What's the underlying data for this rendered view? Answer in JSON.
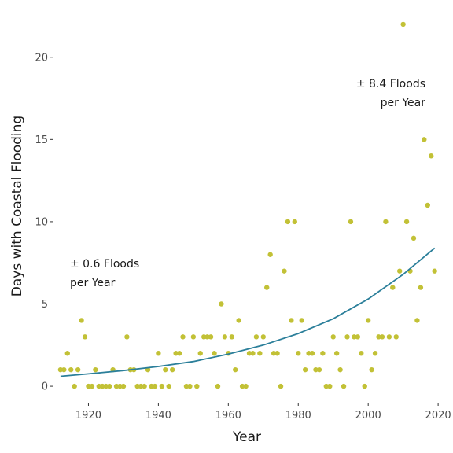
{
  "chart_data": {
    "type": "scatter",
    "xlabel": "Year",
    "ylabel": "Days with Coastal Flooding",
    "xlim": [
      1910,
      2022
    ],
    "ylim": [
      -1,
      23
    ],
    "x_ticks": [
      1920,
      1940,
      1960,
      1980,
      2000,
      2020
    ],
    "y_ticks": [
      0,
      5,
      10,
      15,
      20
    ],
    "grid": false,
    "colors": {
      "points": "#c2c136",
      "trend": "#2b7f9a"
    },
    "points": [
      [
        1912,
        1
      ],
      [
        1913,
        1
      ],
      [
        1914,
        2
      ],
      [
        1915,
        1
      ],
      [
        1916,
        0
      ],
      [
        1917,
        1
      ],
      [
        1918,
        4
      ],
      [
        1919,
        3
      ],
      [
        1920,
        0
      ],
      [
        1921,
        0
      ],
      [
        1922,
        1
      ],
      [
        1923,
        0
      ],
      [
        1924,
        0
      ],
      [
        1925,
        0
      ],
      [
        1926,
        0
      ],
      [
        1927,
        1
      ],
      [
        1928,
        0
      ],
      [
        1929,
        0
      ],
      [
        1930,
        0
      ],
      [
        1931,
        3
      ],
      [
        1932,
        1
      ],
      [
        1933,
        1
      ],
      [
        1934,
        0
      ],
      [
        1935,
        0
      ],
      [
        1936,
        0
      ],
      [
        1937,
        1
      ],
      [
        1938,
        0
      ],
      [
        1939,
        0
      ],
      [
        1940,
        2
      ],
      [
        1941,
        0
      ],
      [
        1942,
        1
      ],
      [
        1943,
        0
      ],
      [
        1944,
        1
      ],
      [
        1945,
        2
      ],
      [
        1946,
        2
      ],
      [
        1947,
        3
      ],
      [
        1948,
        0
      ],
      [
        1949,
        0
      ],
      [
        1950,
        3
      ],
      [
        1951,
        0
      ],
      [
        1952,
        2
      ],
      [
        1953,
        3
      ],
      [
        1954,
        3
      ],
      [
        1955,
        3
      ],
      [
        1956,
        2
      ],
      [
        1957,
        0
      ],
      [
        1958,
        5
      ],
      [
        1959,
        3
      ],
      [
        1960,
        2
      ],
      [
        1961,
        3
      ],
      [
        1962,
        1
      ],
      [
        1963,
        4
      ],
      [
        1964,
        0
      ],
      [
        1965,
        0
      ],
      [
        1966,
        2
      ],
      [
        1967,
        2
      ],
      [
        1968,
        3
      ],
      [
        1969,
        2
      ],
      [
        1970,
        3
      ],
      [
        1971,
        6
      ],
      [
        1972,
        8
      ],
      [
        1973,
        2
      ],
      [
        1974,
        2
      ],
      [
        1975,
        0
      ],
      [
        1976,
        7
      ],
      [
        1977,
        10
      ],
      [
        1978,
        4
      ],
      [
        1979,
        10
      ],
      [
        1980,
        2
      ],
      [
        1981,
        4
      ],
      [
        1982,
        1
      ],
      [
        1983,
        2
      ],
      [
        1984,
        2
      ],
      [
        1985,
        1
      ],
      [
        1986,
        1
      ],
      [
        1987,
        2
      ],
      [
        1988,
        0
      ],
      [
        1989,
        0
      ],
      [
        1990,
        3
      ],
      [
        1991,
        2
      ],
      [
        1992,
        1
      ],
      [
        1993,
        0
      ],
      [
        1994,
        3
      ],
      [
        1995,
        10
      ],
      [
        1996,
        3
      ],
      [
        1997,
        3
      ],
      [
        1998,
        2
      ],
      [
        1999,
        0
      ],
      [
        2000,
        4
      ],
      [
        2001,
        1
      ],
      [
        2002,
        2
      ],
      [
        2003,
        3
      ],
      [
        2004,
        3
      ],
      [
        2005,
        10
      ],
      [
        2006,
        3
      ],
      [
        2007,
        6
      ],
      [
        2008,
        3
      ],
      [
        2009,
        7
      ],
      [
        2010,
        22
      ],
      [
        2011,
        10
      ],
      [
        2012,
        7
      ],
      [
        2013,
        9
      ],
      [
        2014,
        4
      ],
      [
        2015,
        6
      ],
      [
        2016,
        15
      ],
      [
        2017,
        11
      ],
      [
        2018,
        14
      ],
      [
        2019,
        7
      ]
    ],
    "trend": {
      "x": [
        1912,
        1920,
        1930,
        1940,
        1950,
        1960,
        1970,
        1980,
        1990,
        2000,
        2010,
        2019
      ],
      "y": [
        0.6,
        0.75,
        0.95,
        1.2,
        1.5,
        1.95,
        2.5,
        3.2,
        4.1,
        5.3,
        6.8,
        8.4
      ]
    },
    "annotations": [
      {
        "id": "early",
        "lines": [
          "± 0.6 Floods",
          "per Year"
        ]
      },
      {
        "id": "late",
        "lines": [
          "± 8.4 Floods",
          "per Year"
        ]
      }
    ]
  }
}
